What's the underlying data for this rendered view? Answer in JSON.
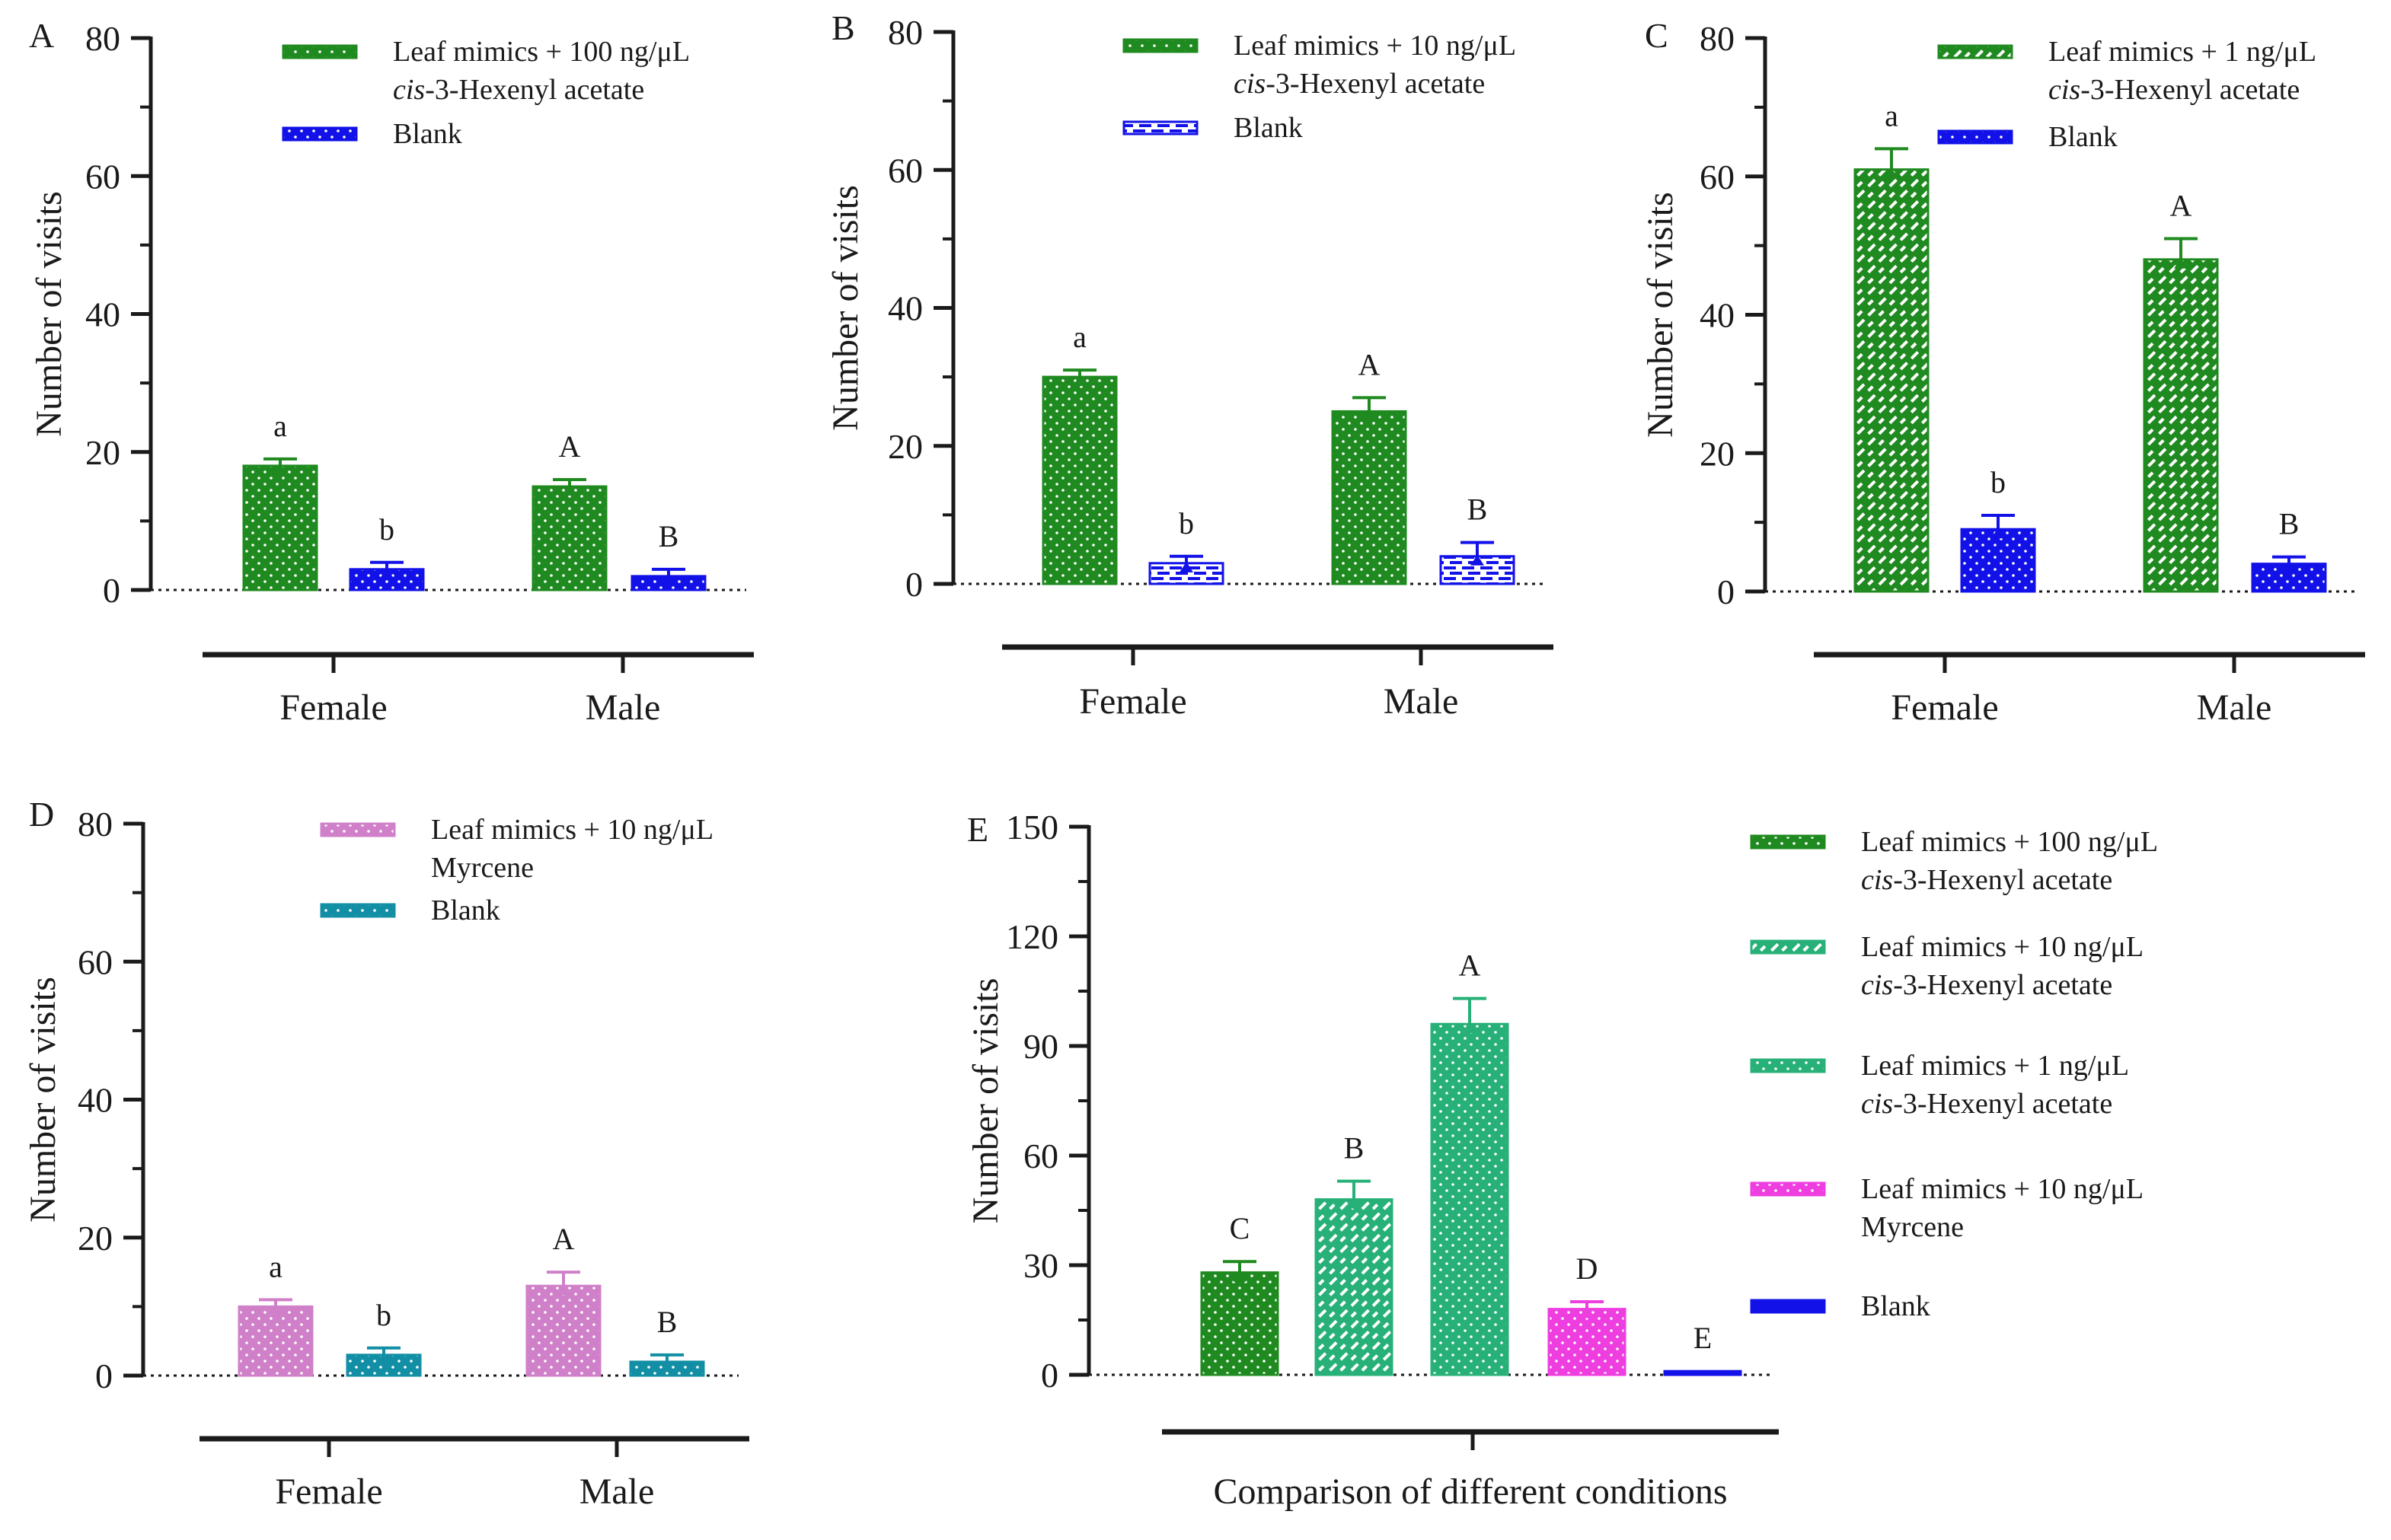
{
  "colors": {
    "dark_green": "#1f8a1f",
    "light_green": "#5ccb5c",
    "teal_green": "#27b078",
    "blue": "#1212e8",
    "teal": "#128fa5",
    "orchid": "#d080c8",
    "magenta": "#ee3ee0",
    "axis": "#1a1a1a"
  },
  "chart_data": [
    {
      "panel_label": "A",
      "type": "bar",
      "ylabel": "Number of visits",
      "xlabel": "",
      "ylim": [
        0,
        80
      ],
      "yticks": [
        0,
        20,
        40,
        60,
        80
      ],
      "categories": [
        "Female",
        "Male"
      ],
      "series": [
        {
          "name": "Leaf mimics + 100 ng/μL",
          "name_line2_italic": "cis",
          "name_line2": "-3-Hexenyl acetate",
          "color": "#1f8a1f",
          "pattern": "dots",
          "values": [
            18,
            15
          ],
          "errors": [
            1,
            1
          ],
          "letters": [
            "a",
            "A"
          ]
        },
        {
          "name": "Blank",
          "name_line2_italic": "",
          "name_line2": "",
          "color": "#1212e8",
          "pattern": "dots",
          "values": [
            3,
            2
          ],
          "errors": [
            1,
            1
          ],
          "letters": [
            "b",
            "B"
          ]
        }
      ]
    },
    {
      "panel_label": "B",
      "type": "bar",
      "ylabel": "Number of visits",
      "xlabel": "",
      "ylim": [
        0,
        80
      ],
      "yticks": [
        0,
        20,
        40,
        60,
        80
      ],
      "categories": [
        "Female",
        "Male"
      ],
      "series": [
        {
          "name": "Leaf mimics + 10 ng/μL",
          "name_line2_italic": "cis",
          "name_line2": "-3-Hexenyl acetate",
          "color": "#1f8a1f",
          "pattern": "dots",
          "values": [
            30,
            25
          ],
          "errors": [
            1,
            2
          ],
          "letters": [
            "a",
            "A"
          ]
        },
        {
          "name": "Blank",
          "name_line2_italic": "",
          "name_line2": "",
          "color": "#1212e8",
          "pattern": "bricks",
          "values": [
            3,
            4
          ],
          "errors": [
            1,
            2
          ],
          "letters": [
            "b",
            "B"
          ]
        }
      ]
    },
    {
      "panel_label": "C",
      "type": "bar",
      "ylabel": "Number of visits",
      "xlabel": "",
      "ylim": [
        0,
        80
      ],
      "yticks": [
        0,
        20,
        40,
        60,
        80
      ],
      "categories": [
        "Female",
        "Male"
      ],
      "series": [
        {
          "name": "Leaf mimics + 1 ng/μL",
          "name_line2_italic": "cis",
          "name_line2": "-3-Hexenyl acetate",
          "color": "#1f8a1f",
          "pattern": "dashes",
          "values": [
            61,
            48
          ],
          "errors": [
            3,
            3
          ],
          "letters": [
            "a",
            "A"
          ]
        },
        {
          "name": "Blank",
          "name_line2_italic": "",
          "name_line2": "",
          "color": "#1212e8",
          "pattern": "dots",
          "values": [
            9,
            4
          ],
          "errors": [
            2,
            1
          ],
          "letters": [
            "b",
            "B"
          ]
        }
      ]
    },
    {
      "panel_label": "D",
      "type": "bar",
      "ylabel": "Number of visits",
      "xlabel": "",
      "ylim": [
        0,
        80
      ],
      "yticks": [
        0,
        20,
        40,
        60,
        80
      ],
      "categories": [
        "Female",
        "Male"
      ],
      "series": [
        {
          "name": "Leaf mimics + 10 ng/μL",
          "name_line2_italic": "",
          "name_line2": "Myrcene",
          "color": "#d080c8",
          "pattern": "dots",
          "values": [
            10,
            13
          ],
          "errors": [
            1,
            2
          ],
          "letters": [
            "a",
            "A"
          ]
        },
        {
          "name": "Blank",
          "name_line2_italic": "",
          "name_line2": "",
          "color": "#128fa5",
          "pattern": "dots",
          "values": [
            3,
            2
          ],
          "errors": [
            1,
            1
          ],
          "letters": [
            "b",
            "B"
          ]
        }
      ]
    },
    {
      "panel_label": "E",
      "type": "bar",
      "ylabel": "Number of visits",
      "xlabel": "Comparison of different conditions",
      "ylim": [
        0,
        150
      ],
      "yticks": [
        0,
        30,
        60,
        90,
        120,
        150
      ],
      "bars": [
        {
          "name": "Leaf mimics + 100 ng/μL",
          "name_line2_italic": "cis",
          "name_line2": "-3-Hexenyl acetate",
          "color": "#1f8a1f",
          "pattern": "dots",
          "value": 28,
          "error": 3,
          "letter": "C"
        },
        {
          "name": "Leaf mimics + 10 ng/μL",
          "name_line2_italic": "cis",
          "name_line2": "-3-Hexenyl acetate",
          "color": "#27b078",
          "pattern": "dashes",
          "value": 48,
          "error": 5,
          "letter": "B"
        },
        {
          "name": "Leaf mimics + 1 ng/μL",
          "name_line2_italic": "cis",
          "name_line2": "-3-Hexenyl acetate",
          "color": "#27b078",
          "pattern": "dots",
          "value": 96,
          "error": 7,
          "letter": "A"
        },
        {
          "name": "Leaf mimics + 10 ng/μL",
          "name_line2_italic": "",
          "name_line2": "Myrcene",
          "color": "#ee3ee0",
          "pattern": "dots",
          "value": 18,
          "error": 2,
          "letter": "D"
        },
        {
          "name": "Blank",
          "name_line2_italic": "",
          "name_line2": "",
          "color": "#1212e8",
          "pattern": "none",
          "value": 1,
          "error": 0,
          "letter": "E"
        }
      ]
    }
  ]
}
